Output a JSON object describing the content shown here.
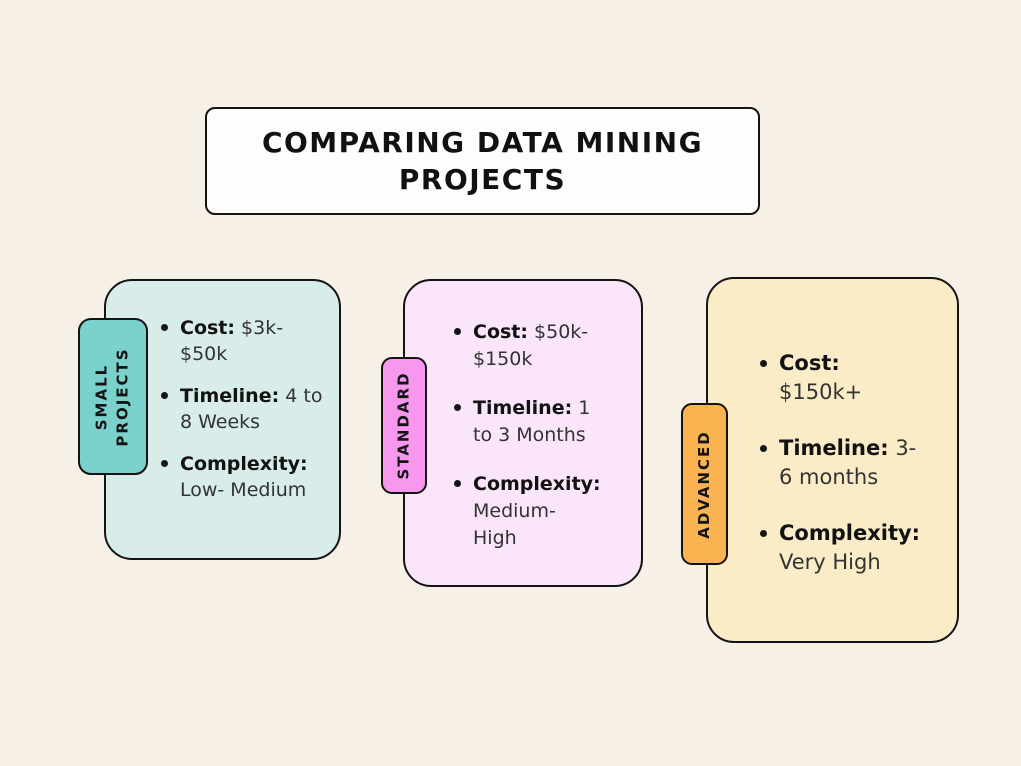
{
  "page": {
    "background": "#f6f0e7",
    "border_color": "#141414"
  },
  "title": {
    "text": "COMPARING DATA MINING PROJECTS"
  },
  "cards": [
    {
      "name": "small-projects",
      "tab": "SMALL\nPROJECTS",
      "tab_color": "#7bd2cc",
      "card_color": "#d8ecea",
      "items": [
        {
          "label": "Cost:",
          "value": " $3k-\n$50k"
        },
        {
          "label": "Timeline:",
          "value": " 4 to\n8 Weeks"
        },
        {
          "label": "Complexity:",
          "value": "\nLow- Medium"
        }
      ]
    },
    {
      "name": "standard",
      "tab": "STANDARD",
      "tab_color": "#f797ee",
      "card_color": "#fbe5fa",
      "items": [
        {
          "label": "Cost:",
          "value": " $50k-\n$150k"
        },
        {
          "label": "Timeline:",
          "value": " 1\nto 3 Months"
        },
        {
          "label": "Complexity:",
          "value": "\nMedium-\nHigh"
        }
      ]
    },
    {
      "name": "advanced",
      "tab": "ADVANCED",
      "tab_color": "#f9b350",
      "card_color": "#f9ecc6",
      "items": [
        {
          "label": "Cost:",
          "value": "\n$150k+"
        },
        {
          "label": "Timeline:",
          "value": " 3-\n6 months"
        },
        {
          "label": "Complexity:",
          "value": "\nVery High"
        }
      ]
    }
  ]
}
